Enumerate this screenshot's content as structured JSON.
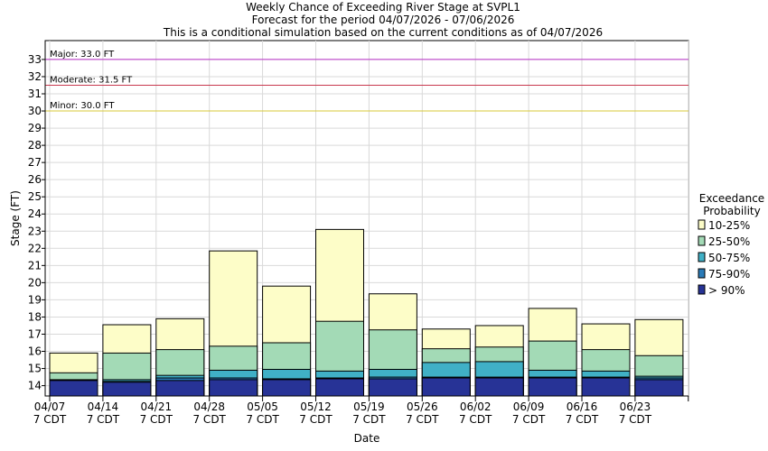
{
  "chart_data": {
    "type": "bar",
    "title_lines": [
      "Weekly Chance of Exceeding River Stage at SVPL1",
      "Forecast for the period 04/07/2026 - 07/06/2026",
      "This is a conditional simulation based on the current conditions as of 04/07/2026"
    ],
    "xlabel": "Date",
    "ylabel": "Stage (FT)",
    "ylim": [
      13.4,
      34.1
    ],
    "yticks": [
      14,
      15,
      16,
      17,
      18,
      19,
      20,
      21,
      22,
      23,
      24,
      25,
      26,
      27,
      28,
      29,
      30,
      31,
      32,
      33
    ],
    "x_ticks": [
      {
        "date": "04/07",
        "tz": "7 CDT"
      },
      {
        "date": "04/14",
        "tz": "7 CDT"
      },
      {
        "date": "04/21",
        "tz": "7 CDT"
      },
      {
        "date": "04/28",
        "tz": "7 CDT"
      },
      {
        "date": "05/05",
        "tz": "7 CDT"
      },
      {
        "date": "05/12",
        "tz": "7 CDT"
      },
      {
        "date": "05/19",
        "tz": "7 CDT"
      },
      {
        "date": "05/26",
        "tz": "7 CDT"
      },
      {
        "date": "06/02",
        "tz": "7 CDT"
      },
      {
        "date": "06/09",
        "tz": "7 CDT"
      },
      {
        "date": "06/16",
        "tz": "7 CDT"
      },
      {
        "date": "06/23",
        "tz": "7 CDT"
      }
    ],
    "weeks": [
      {
        "gt90": 14.3,
        "p75_90": 14.32,
        "p50_75": 14.35,
        "p25_50": 14.75,
        "p10_25": 15.9
      },
      {
        "gt90": 14.2,
        "p75_90": 14.25,
        "p50_75": 14.35,
        "p25_50": 15.9,
        "p10_25": 17.55
      },
      {
        "gt90": 14.3,
        "p75_90": 14.45,
        "p50_75": 14.6,
        "p25_50": 16.1,
        "p10_25": 17.9
      },
      {
        "gt90": 14.35,
        "p75_90": 14.45,
        "p50_75": 14.9,
        "p25_50": 16.3,
        "p10_25": 21.85
      },
      {
        "gt90": 14.35,
        "p75_90": 14.4,
        "p50_75": 14.95,
        "p25_50": 16.5,
        "p10_25": 19.8
      },
      {
        "gt90": 14.4,
        "p75_90": 14.45,
        "p50_75": 14.85,
        "p25_50": 17.75,
        "p10_25": 23.1
      },
      {
        "gt90": 14.4,
        "p75_90": 14.5,
        "p50_75": 14.95,
        "p25_50": 17.25,
        "p10_25": 19.35
      },
      {
        "gt90": 14.45,
        "p75_90": 14.5,
        "p50_75": 15.35,
        "p25_50": 16.15,
        "p10_25": 17.3
      },
      {
        "gt90": 14.45,
        "p75_90": 14.5,
        "p50_75": 15.4,
        "p25_50": 16.25,
        "p10_25": 17.5
      },
      {
        "gt90": 14.45,
        "p75_90": 14.5,
        "p50_75": 14.9,
        "p25_50": 16.6,
        "p10_25": 18.5
      },
      {
        "gt90": 14.45,
        "p75_90": 14.5,
        "p50_75": 14.85,
        "p25_50": 16.1,
        "p10_25": 17.6
      },
      {
        "gt90": 14.35,
        "p75_90": 14.45,
        "p50_75": 14.55,
        "p25_50": 15.75,
        "p10_25": 17.85
      }
    ],
    "thresholds": [
      {
        "label": "Major: 33.0 FT",
        "value": 33.0,
        "color": "#b82fc7"
      },
      {
        "label": "Moderate: 31.5 FT",
        "value": 31.5,
        "color": "#c8384e"
      },
      {
        "label": "Minor: 30.0 FT",
        "value": 30.0,
        "color": "#d8c837"
      }
    ],
    "legend": {
      "title": [
        "Exceedance",
        "Probability"
      ],
      "items": [
        {
          "key": "p10_25",
          "label": "10-25%",
          "color": "#fdfdc8"
        },
        {
          "key": "p25_50",
          "label": "25-50%",
          "color": "#a3dab6"
        },
        {
          "key": "p50_75",
          "label": "50-75%",
          "color": "#40b0c6"
        },
        {
          "key": "p75_90",
          "label": "75-90%",
          "color": "#2a7bb8"
        },
        {
          "key": "gt90",
          "label": "> 90%",
          "color": "#273396"
        }
      ]
    }
  }
}
